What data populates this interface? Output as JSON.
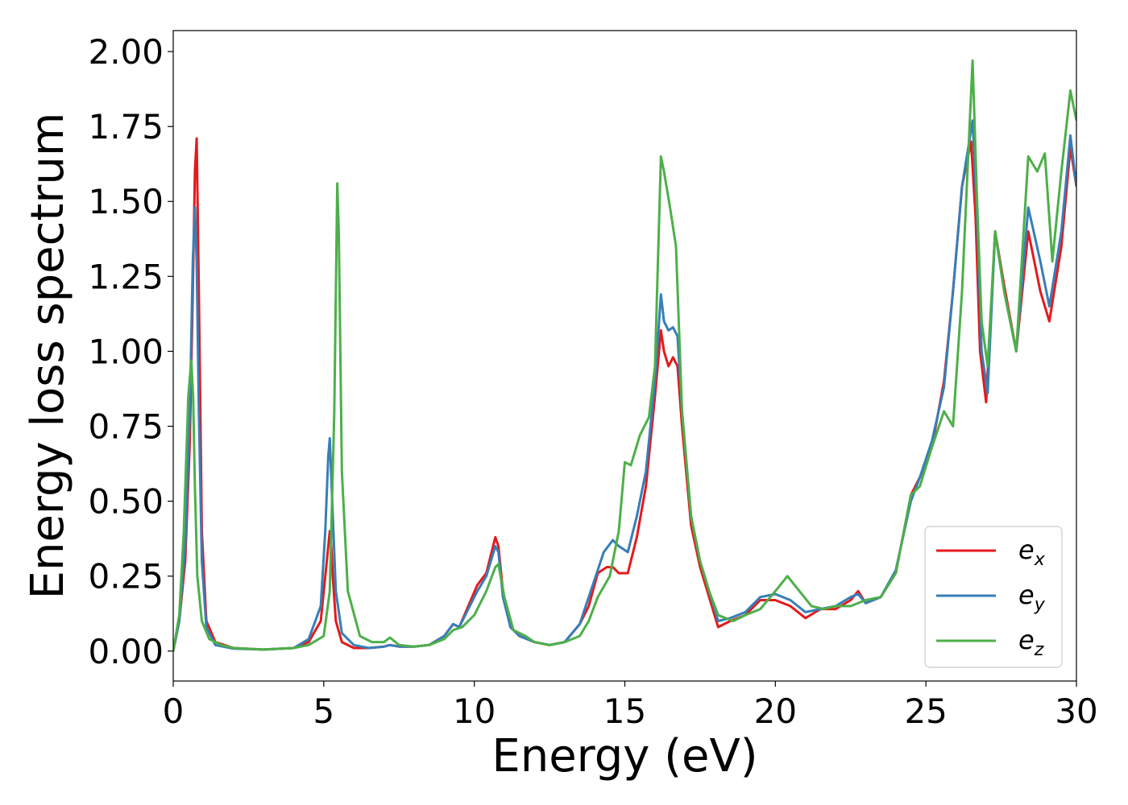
{
  "chart_data": {
    "type": "line",
    "xlabel": "Energy (eV)",
    "ylabel": "Energy loss spectrum",
    "xlim": [
      0,
      30
    ],
    "ylim": [
      -0.1,
      2.07
    ],
    "xticks": [
      0,
      5,
      10,
      15,
      20,
      25,
      30
    ],
    "xtick_labels": [
      "0",
      "5",
      "10",
      "15",
      "20",
      "25",
      "30"
    ],
    "yticks": [
      0.0,
      0.25,
      0.5,
      0.75,
      1.0,
      1.25,
      1.5,
      1.75,
      2.0
    ],
    "ytick_labels": [
      "0.00",
      "0.25",
      "0.50",
      "0.75",
      "1.00",
      "1.25",
      "1.50",
      "1.75",
      "2.00"
    ],
    "grid": false,
    "legend_position": "bottom-right",
    "series": [
      {
        "name": "e",
        "subscript": "x",
        "color": "#e41a1c",
        "x": [
          0,
          0.2,
          0.4,
          0.55,
          0.65,
          0.72,
          0.78,
          0.85,
          0.95,
          1.1,
          1.4,
          2,
          3,
          4,
          4.5,
          4.9,
          5.1,
          5.2,
          5.25,
          5.3,
          5.4,
          5.6,
          6,
          6.5,
          7,
          7.2,
          7.5,
          8,
          8.5,
          9,
          9.3,
          9.5,
          9.8,
          10.1,
          10.4,
          10.7,
          10.8,
          10.95,
          11.2,
          11.5,
          12,
          12.5,
          13,
          13.5,
          13.8,
          14.1,
          14.4,
          14.6,
          14.8,
          15.1,
          15.4,
          15.7,
          16,
          16.2,
          16.3,
          16.45,
          16.6,
          16.75,
          16.9,
          17.2,
          17.5,
          17.8,
          18.1,
          18.5,
          19,
          19.5,
          20,
          20.5,
          21,
          21.5,
          22,
          22.5,
          22.75,
          23,
          23.5,
          24,
          24.5,
          24.8,
          25.2,
          25.6,
          25.9,
          26.2,
          26.5,
          26.65,
          26.8,
          27,
          27.3,
          27.6,
          28,
          28.4,
          28.8,
          29.1,
          29.5,
          29.8,
          30
        ],
        "y": [
          0,
          0.1,
          0.3,
          0.7,
          1.2,
          1.6,
          1.71,
          1.2,
          0.4,
          0.1,
          0.03,
          0.01,
          0.005,
          0.01,
          0.03,
          0.1,
          0.3,
          0.4,
          0.35,
          0.25,
          0.1,
          0.03,
          0.01,
          0.01,
          0.015,
          0.02,
          0.015,
          0.015,
          0.02,
          0.05,
          0.09,
          0.08,
          0.15,
          0.22,
          0.26,
          0.38,
          0.35,
          0.2,
          0.08,
          0.05,
          0.03,
          0.02,
          0.03,
          0.09,
          0.15,
          0.26,
          0.28,
          0.28,
          0.26,
          0.26,
          0.38,
          0.55,
          0.85,
          1.07,
          1.0,
          0.95,
          0.98,
          0.95,
          0.75,
          0.42,
          0.28,
          0.18,
          0.08,
          0.1,
          0.12,
          0.17,
          0.17,
          0.15,
          0.11,
          0.14,
          0.14,
          0.17,
          0.2,
          0.16,
          0.18,
          0.26,
          0.52,
          0.58,
          0.68,
          0.9,
          1.2,
          1.55,
          1.7,
          1.45,
          1.0,
          0.83,
          1.4,
          1.22,
          1.0,
          1.4,
          1.2,
          1.1,
          1.35,
          1.68,
          1.55
        ]
      },
      {
        "name": "e",
        "subscript": "y",
        "color": "#377eb8",
        "x": [
          0,
          0.2,
          0.4,
          0.55,
          0.65,
          0.72,
          0.78,
          0.85,
          0.95,
          1.1,
          1.4,
          2,
          3,
          4,
          4.5,
          4.9,
          5.05,
          5.15,
          5.2,
          5.28,
          5.4,
          5.6,
          6,
          6.5,
          7,
          7.2,
          7.5,
          8,
          8.5,
          9,
          9.3,
          9.5,
          9.8,
          10.1,
          10.4,
          10.7,
          10.8,
          10.95,
          11.2,
          11.5,
          12,
          12.5,
          13,
          13.5,
          13.8,
          14.1,
          14.3,
          14.6,
          14.8,
          15.1,
          15.4,
          15.7,
          16,
          16.2,
          16.3,
          16.45,
          16.6,
          16.75,
          16.9,
          17.2,
          17.5,
          17.8,
          18.1,
          18.5,
          19,
          19.5,
          20,
          20.5,
          21,
          21.5,
          22,
          22.5,
          22.75,
          23,
          23.5,
          24,
          24.5,
          24.8,
          25.2,
          25.6,
          25.9,
          26.2,
          26.55,
          26.7,
          26.85,
          27.05,
          27.3,
          27.6,
          28,
          28.4,
          28.8,
          29.1,
          29.5,
          29.8,
          30
        ],
        "y": [
          0,
          0.1,
          0.35,
          0.8,
          1.3,
          1.48,
          1.3,
          0.8,
          0.3,
          0.08,
          0.02,
          0.008,
          0.005,
          0.01,
          0.04,
          0.15,
          0.4,
          0.65,
          0.71,
          0.5,
          0.2,
          0.06,
          0.02,
          0.01,
          0.015,
          0.02,
          0.015,
          0.015,
          0.02,
          0.05,
          0.09,
          0.08,
          0.14,
          0.2,
          0.25,
          0.35,
          0.33,
          0.18,
          0.08,
          0.05,
          0.03,
          0.02,
          0.03,
          0.09,
          0.18,
          0.27,
          0.33,
          0.37,
          0.35,
          0.33,
          0.45,
          0.6,
          0.9,
          1.19,
          1.1,
          1.07,
          1.08,
          1.05,
          0.8,
          0.45,
          0.3,
          0.2,
          0.1,
          0.11,
          0.13,
          0.18,
          0.19,
          0.17,
          0.13,
          0.14,
          0.15,
          0.18,
          0.19,
          0.16,
          0.18,
          0.27,
          0.5,
          0.58,
          0.7,
          0.88,
          1.2,
          1.55,
          1.77,
          1.45,
          1.0,
          0.86,
          1.4,
          1.2,
          1.0,
          1.48,
          1.3,
          1.15,
          1.4,
          1.72,
          1.55
        ]
      },
      {
        "name": "e",
        "subscript": "z",
        "color": "#4daf4a",
        "x": [
          0,
          0.2,
          0.35,
          0.5,
          0.6,
          0.66,
          0.72,
          0.8,
          0.95,
          1.2,
          1.6,
          2,
          3,
          4,
          4.5,
          5,
          5.2,
          5.35,
          5.45,
          5.5,
          5.6,
          5.8,
          6.2,
          6.6,
          7,
          7.2,
          7.5,
          8,
          8.5,
          9,
          9.3,
          9.6,
          10,
          10.4,
          10.7,
          10.8,
          11,
          11.3,
          11.7,
          12,
          12.5,
          13,
          13.5,
          13.8,
          14.1,
          14.5,
          14.8,
          15,
          15.2,
          15.5,
          15.8,
          16,
          16.2,
          16.3,
          16.5,
          16.7,
          16.9,
          17.2,
          17.5,
          17.8,
          18.1,
          18.6,
          19,
          19.5,
          20,
          20.4,
          20.8,
          21.2,
          21.6,
          22,
          22.5,
          23,
          23.5,
          24,
          24.5,
          24.8,
          25.2,
          25.6,
          25.9,
          26.2,
          26.55,
          26.7,
          26.85,
          27.05,
          27.3,
          27.6,
          28,
          28.4,
          28.7,
          28.95,
          29.2,
          29.5,
          29.8,
          30
        ],
        "y": [
          0,
          0.12,
          0.4,
          0.85,
          0.97,
          0.85,
          0.55,
          0.25,
          0.1,
          0.04,
          0.02,
          0.01,
          0.005,
          0.01,
          0.02,
          0.05,
          0.2,
          0.8,
          1.56,
          1.4,
          0.6,
          0.2,
          0.05,
          0.03,
          0.03,
          0.045,
          0.02,
          0.015,
          0.02,
          0.04,
          0.07,
          0.08,
          0.12,
          0.2,
          0.28,
          0.29,
          0.18,
          0.07,
          0.05,
          0.03,
          0.02,
          0.03,
          0.05,
          0.1,
          0.18,
          0.25,
          0.4,
          0.63,
          0.62,
          0.72,
          0.78,
          0.95,
          1.65,
          1.6,
          1.48,
          1.35,
          0.8,
          0.45,
          0.3,
          0.2,
          0.12,
          0.1,
          0.12,
          0.14,
          0.2,
          0.25,
          0.2,
          0.15,
          0.14,
          0.15,
          0.15,
          0.17,
          0.18,
          0.26,
          0.52,
          0.55,
          0.68,
          0.8,
          0.75,
          1.2,
          1.97,
          1.5,
          1.1,
          0.95,
          1.4,
          1.2,
          1.0,
          1.65,
          1.6,
          1.66,
          1.3,
          1.6,
          1.87,
          1.77
        ]
      }
    ]
  }
}
